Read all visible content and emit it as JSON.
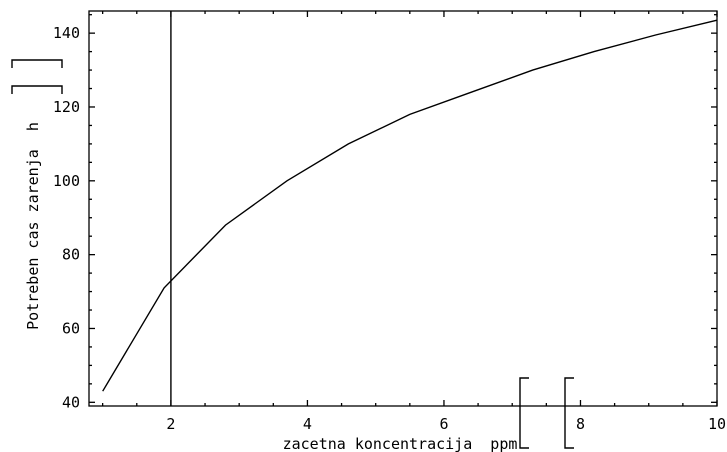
{
  "chart_data": {
    "type": "line",
    "xlabel": "zacetna koncentracija  ppm",
    "ylabel": "Potreben cas zarenja  h",
    "xlim": [
      0.8,
      10.0
    ],
    "ylim": [
      39,
      146
    ],
    "x_ticks": [
      2,
      4,
      6,
      8,
      10
    ],
    "y_ticks": [
      40,
      60,
      80,
      100,
      120,
      140
    ],
    "x_tick_labels": [
      "2",
      "4",
      "6",
      "8",
      "10"
    ],
    "y_tick_labels": [
      "40",
      "60",
      "80",
      "100",
      "120",
      "140"
    ],
    "grid": false,
    "vertical_line_x": 2.0,
    "series": [
      {
        "x": [
          1.0,
          1.9,
          2.8,
          3.7,
          4.6,
          5.5,
          6.4,
          7.3,
          8.2,
          9.1,
          10.0
        ],
        "y": [
          43,
          71,
          88,
          100,
          110,
          118,
          124,
          130,
          135,
          139.5,
          143.5
        ]
      }
    ]
  }
}
